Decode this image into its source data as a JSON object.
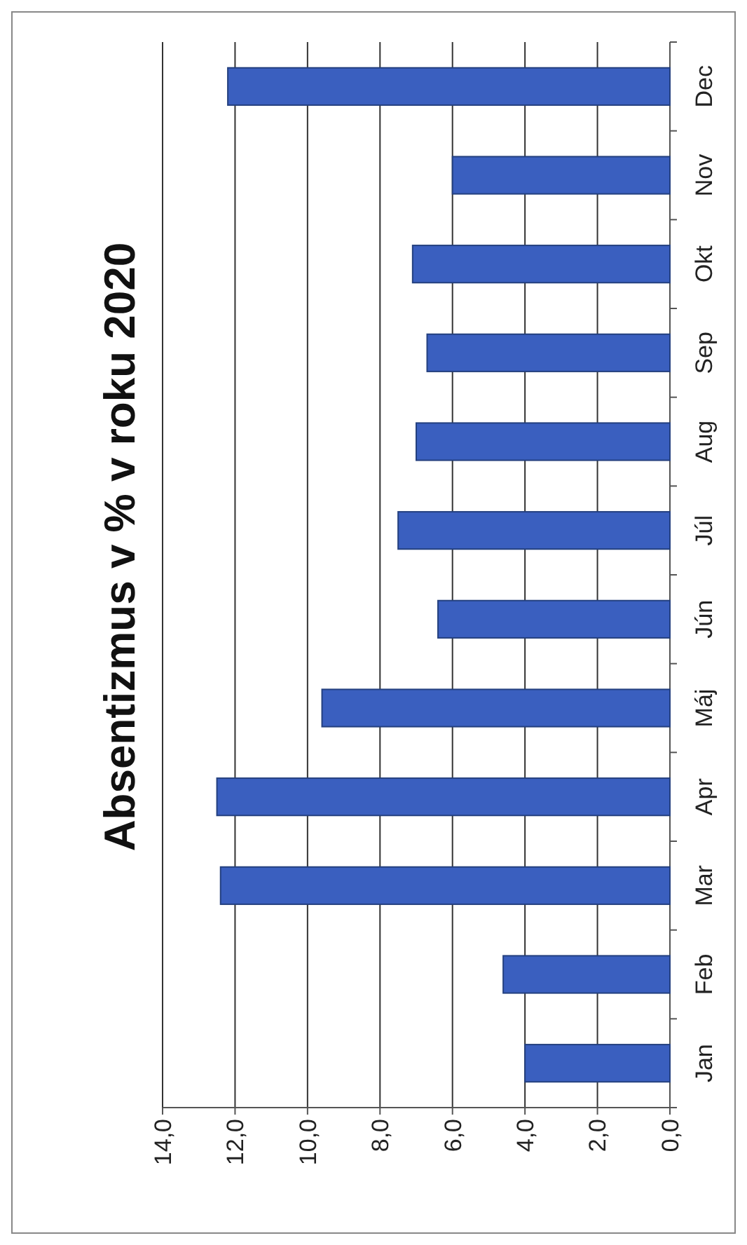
{
  "chart_data": {
    "type": "bar",
    "title": "Absentizmus v % v roku 2020",
    "orientation": "horizontal",
    "categories": [
      "Dec",
      "Nov",
      "Okt",
      "Sep",
      "Aug",
      "Júl",
      "Jún",
      "Máj",
      "Apr",
      "Mar",
      "Feb",
      "Jan"
    ],
    "values": [
      12.2,
      6.0,
      7.1,
      6.7,
      7.0,
      7.5,
      6.4,
      9.6,
      12.5,
      12.4,
      4.6,
      4.0
    ],
    "color": "#3a5fbf",
    "xlim": [
      14,
      0
    ],
    "xticks": [
      {
        "value": 14,
        "label": "14,0"
      },
      {
        "value": 12,
        "label": "12,0"
      },
      {
        "value": 10,
        "label": "10,0"
      },
      {
        "value": 8,
        "label": "8,0"
      },
      {
        "value": 6,
        "label": "6,0"
      },
      {
        "value": 4,
        "label": "4,0"
      },
      {
        "value": 2,
        "label": "2,0"
      },
      {
        "value": 0,
        "label": "0,0"
      }
    ],
    "grid": "x"
  }
}
